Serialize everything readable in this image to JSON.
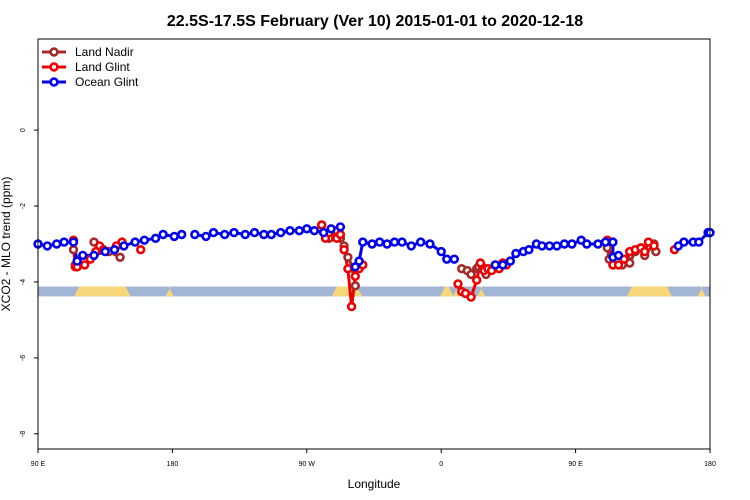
{
  "chart_data": {
    "type": "line",
    "title": "22.5S-17.5S February (Ver 10)   2015-01-01 to 2020-12-18",
    "xlabel": "Longitude",
    "ylabel": "XCO2 - MLO trend (ppm)",
    "xlim": [
      90,
      450
    ],
    "ylim": [
      -8,
      2
    ],
    "x_ticks": [
      {
        "value": 90,
        "label": "90 E"
      },
      {
        "value": 162,
        "label": "180"
      },
      {
        "value": 234,
        "label": "90 W"
      },
      {
        "value": 306,
        "label": "0"
      },
      {
        "value": 378,
        "label": "90 E"
      },
      {
        "value": 450,
        "label": "180"
      }
    ],
    "y_ticks": [
      {
        "value": 0,
        "label": "0"
      },
      {
        "value": -2,
        "label": "-2"
      },
      {
        "value": -4,
        "label": "-4"
      },
      {
        "value": -6,
        "label": "-6"
      },
      {
        "value": -8,
        "label": "-8"
      }
    ],
    "legend_position": "top-left",
    "land_ocean_strip": {
      "y_top": -4.12,
      "y_bottom": -4.38,
      "ocean_color": "#a2b5d5",
      "land_color": "#f7d77a",
      "land_ranges": [
        [
          111,
          138
        ],
        [
          160,
          161
        ],
        [
          249,
          262
        ],
        [
          307,
          311
        ],
        [
          314,
          319
        ],
        [
          327,
          328
        ],
        [
          407,
          428
        ],
        [
          445,
          446
        ]
      ]
    },
    "series": [
      {
        "name": "Land Nadir",
        "color": "#a52a2a",
        "x": [
          109,
          110,
          111,
          120,
          125,
          128,
          134,
          242,
          244,
          246,
          250,
          252,
          254,
          256,
          259,
          260,
          317,
          320,
          322,
          325,
          326,
          328,
          330,
          395,
          396,
          398,
          403,
          405,
          407,
          410,
          413,
          415,
          420,
          421
        ],
        "y": [
          -3.15,
          -3.55,
          -3.6,
          -2.95,
          -3.15,
          -3.2,
          -3.35,
          -2.5,
          -2.75,
          -2.85,
          -2.65,
          -2.85,
          -3.05,
          -3.35,
          -3.65,
          -4.1,
          -3.65,
          -3.7,
          -3.8,
          -3.65,
          -3.6,
          -3.6,
          -3.8,
          -3.1,
          -3.4,
          -3.55,
          -3.55,
          -3.4,
          -3.5,
          -3.2,
          -3.1,
          -3.3,
          -3.0,
          -3.2
        ]
      },
      {
        "name": "Land Glint",
        "color": "#ee0000",
        "x": [
          109,
          110,
          111,
          115,
          118,
          121,
          123,
          125,
          132,
          135,
          145,
          242,
          244,
          246,
          250,
          252,
          254,
          256,
          258,
          260,
          262,
          264,
          315,
          317,
          319,
          322,
          325,
          327,
          329,
          331,
          333,
          335,
          337,
          339,
          341,
          395,
          398,
          401,
          404,
          407,
          410,
          413,
          415,
          417,
          420,
          431
        ],
        "y": [
          -2.9,
          -3.6,
          -3.6,
          -3.55,
          -3.4,
          -3.2,
          -3.05,
          -3.15,
          -3.05,
          -2.95,
          -3.15,
          -2.5,
          -2.85,
          -2.7,
          -2.85,
          -2.75,
          -3.15,
          -3.65,
          -4.65,
          -3.85,
          -3.65,
          -3.55,
          -4.05,
          -4.25,
          -4.3,
          -4.4,
          -3.95,
          -3.5,
          -3.7,
          -3.65,
          -3.7,
          -3.55,
          -3.65,
          -3.5,
          -3.55,
          -2.9,
          -3.55,
          -3.55,
          -3.4,
          -3.2,
          -3.15,
          -3.1,
          -3.2,
          -2.95,
          -3.05,
          -3.15
        ]
      },
      {
        "name": "Ocean Glint",
        "color": "#0000ee",
        "x": [
          90,
          95,
          100,
          104,
          109,
          111,
          114,
          120,
          126,
          131,
          136,
          142,
          147,
          153,
          157,
          163,
          167,
          174,
          180,
          184,
          190,
          195,
          201,
          206,
          211,
          215,
          220,
          225,
          230,
          234,
          238,
          243,
          247,
          252,
          260,
          262,
          264,
          269,
          273,
          277,
          281,
          285,
          290,
          295,
          300,
          306,
          309,
          313,
          335,
          339,
          343,
          346,
          350,
          353,
          357,
          360,
          364,
          368,
          372,
          376,
          381,
          384,
          390,
          394,
          398,
          398,
          401,
          433,
          436,
          441,
          444,
          449,
          450
        ],
        "y": [
          -3.0,
          -3.05,
          -3.0,
          -2.95,
          -2.95,
          -3.45,
          -3.3,
          -3.3,
          -3.2,
          -3.15,
          -3.05,
          -2.95,
          -2.9,
          -2.85,
          -2.75,
          -2.8,
          -2.75,
          -2.75,
          -2.8,
          -2.7,
          -2.75,
          -2.7,
          -2.75,
          -2.7,
          -2.75,
          -2.75,
          -2.7,
          -2.65,
          -2.65,
          -2.6,
          -2.65,
          -2.7,
          -2.6,
          -2.55,
          -3.6,
          -3.45,
          -2.95,
          -3.0,
          -2.95,
          -3.0,
          -2.95,
          -2.95,
          -3.05,
          -2.95,
          -3.0,
          -3.2,
          -3.4,
          -3.4,
          -3.55,
          -3.55,
          -3.45,
          -3.25,
          -3.2,
          -3.15,
          -3.0,
          -3.05,
          -3.05,
          -3.05,
          -3.0,
          -3.0,
          -2.9,
          -3.0,
          -3.0,
          -2.95,
          -2.95,
          -3.35,
          -3.3,
          -3.05,
          -2.95,
          -2.95,
          -2.95,
          -2.7,
          -2.7
        ]
      }
    ]
  }
}
